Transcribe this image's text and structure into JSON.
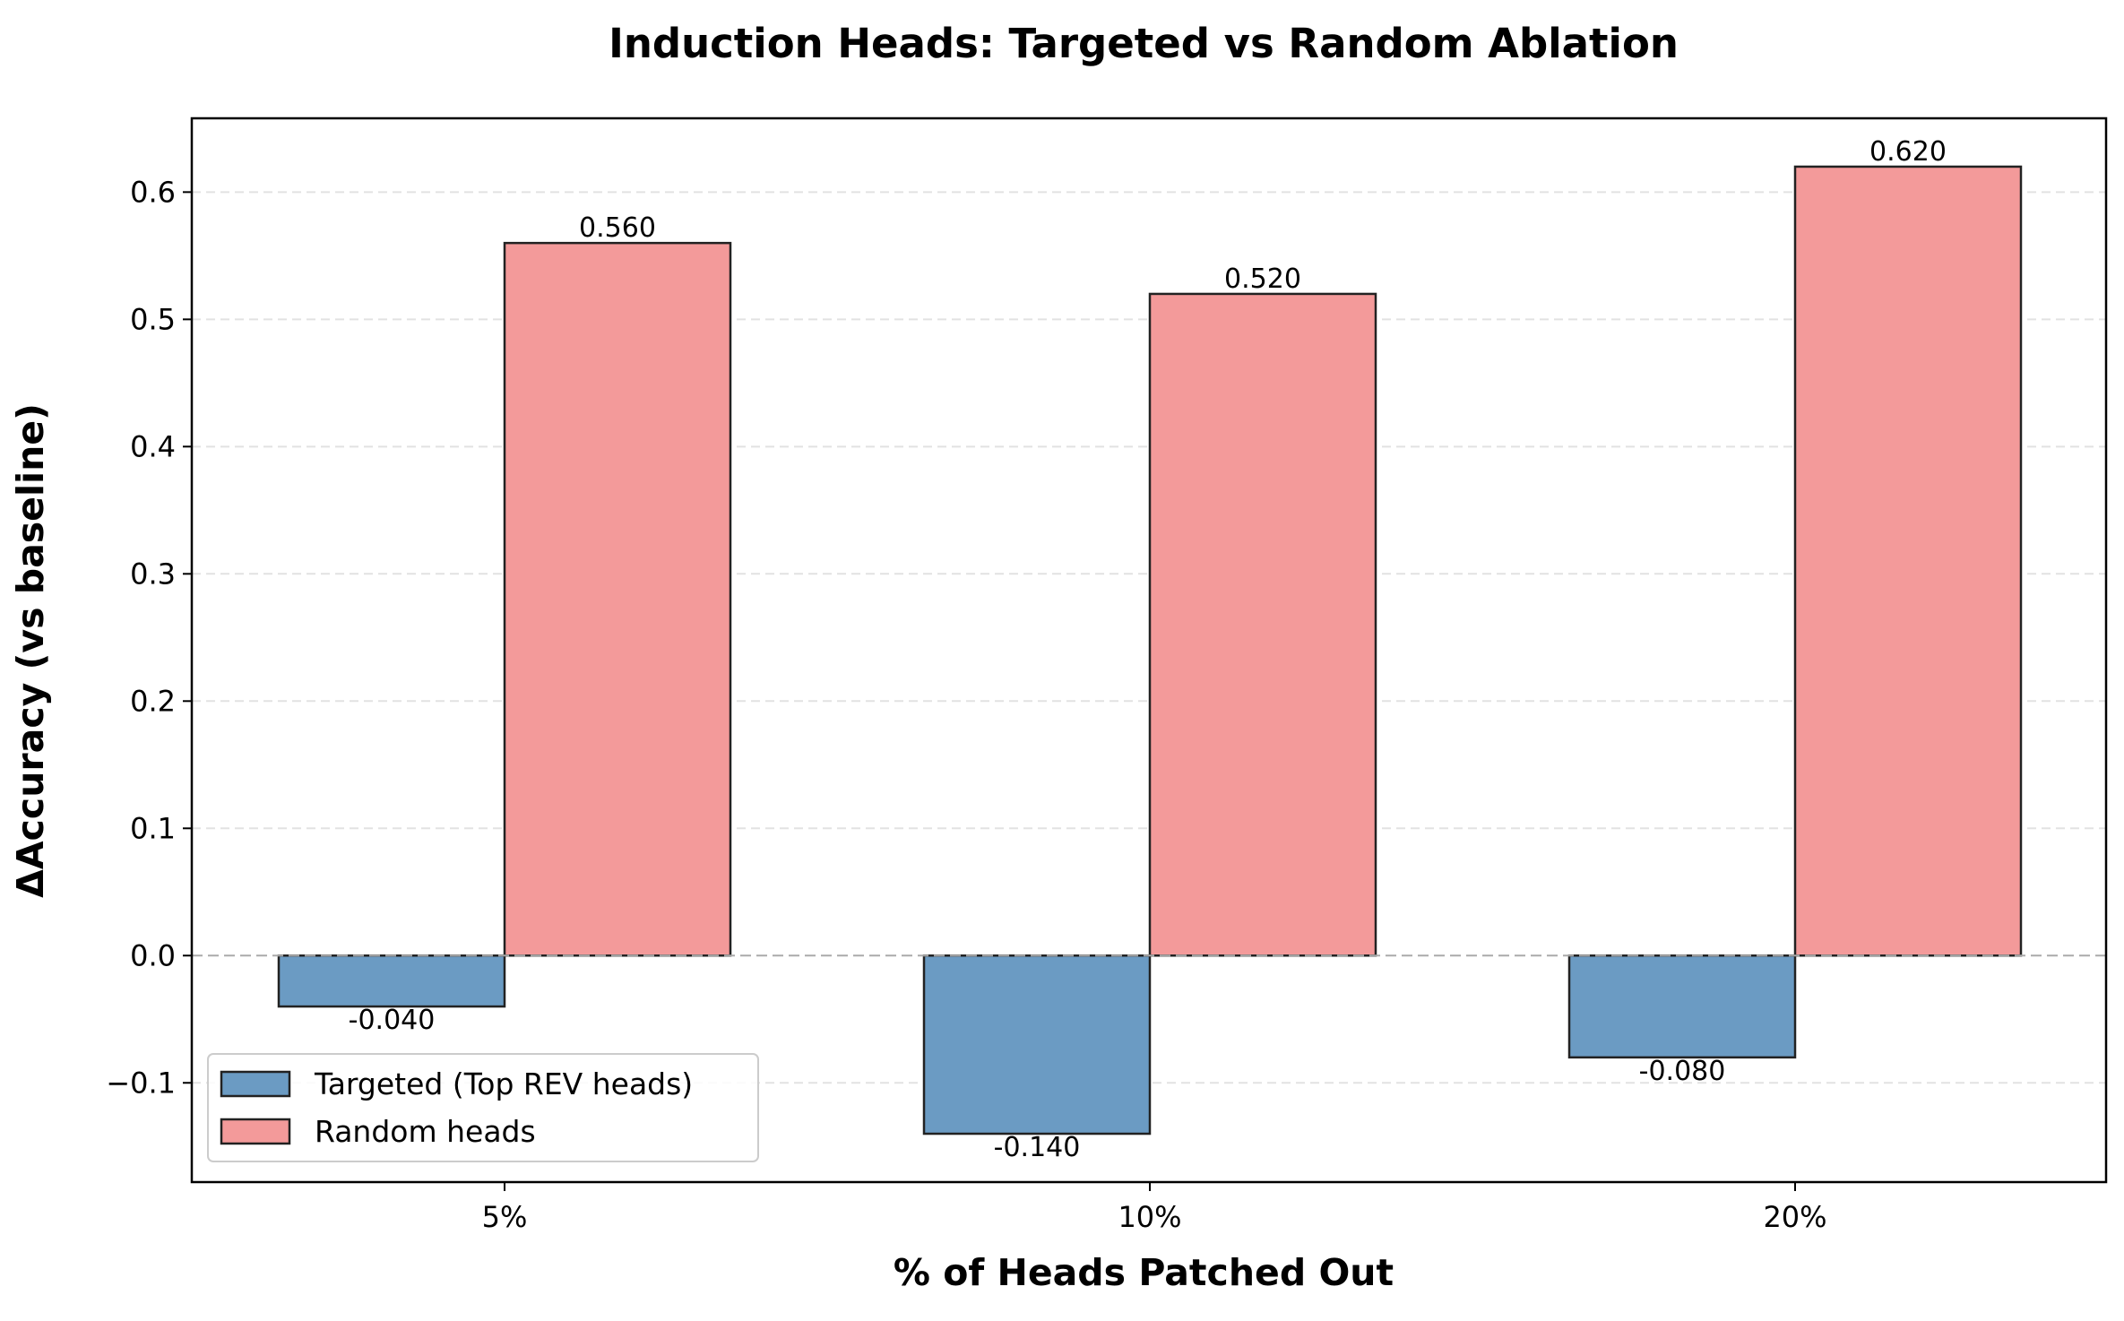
{
  "chart_data": {
    "type": "bar",
    "title": "Induction Heads: Targeted vs Random Ablation",
    "xlabel": "% of Heads Patched Out",
    "ylabel": "ΔAccuracy (vs baseline)",
    "categories": [
      "5%",
      "10%",
      "20%"
    ],
    "series": [
      {
        "name": "Targeted (Top REV heads)",
        "values": [
          -0.04,
          -0.14,
          -0.08
        ],
        "labels": [
          "-0.040",
          "-0.140",
          "-0.080"
        ],
        "color": "#6b9bc3"
      },
      {
        "name": "Random heads",
        "values": [
          0.56,
          0.52,
          0.62
        ],
        "labels": [
          "0.560",
          "0.520",
          "0.620"
        ],
        "color": "#f39a9a"
      }
    ],
    "ylim": [
      -0.178,
      0.658
    ],
    "yticks": [
      -0.1,
      0.0,
      0.1,
      0.2,
      0.3,
      0.4,
      0.5,
      0.6
    ],
    "ytick_labels": [
      "−0.1",
      "0.0",
      "0.1",
      "0.2",
      "0.3",
      "0.4",
      "0.5",
      "0.6"
    ],
    "grid": "y-dashed",
    "zero_line": true,
    "legend_position": "lower-left"
  },
  "colors": {
    "targeted": "#6b9bc3",
    "random": "#f39a9a",
    "edge": "#222222",
    "grid": "#e2e2e2",
    "zero_line": "#aaaaaa"
  }
}
